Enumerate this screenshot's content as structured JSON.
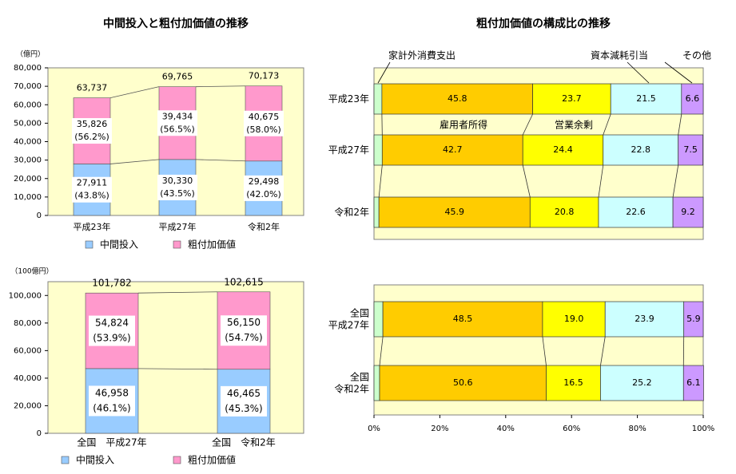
{
  "chart_data": [
    {
      "type": "stacked_bar",
      "title": "中間投入と粗付加価値の推移",
      "unit": "（億円）",
      "categories": [
        "平成23年",
        "平成27年",
        "令和2年"
      ],
      "series": [
        {
          "name": "中間投入",
          "color": "#99ccff",
          "values": [
            27911,
            30330,
            29498
          ],
          "value_labels": [
            "27,911",
            "30,330",
            "29,498"
          ],
          "shares": [
            43.8,
            43.5,
            42.0
          ],
          "share_labels": [
            "(43.8%)",
            "(43.5%)",
            "(42.0%)"
          ]
        },
        {
          "name": "粗付加価値",
          "color": "#ff99cc",
          "values": [
            35826,
            39434,
            40675
          ],
          "value_labels": [
            "35,826",
            "39,434",
            "40,675"
          ],
          "shares": [
            56.2,
            56.5,
            58.0
          ],
          "share_labels": [
            "(56.2%)",
            "(56.5%)",
            "(58.0%)"
          ]
        }
      ],
      "totals": [
        63737,
        69765,
        70173
      ],
      "total_labels": [
        "63,737",
        "69,765",
        "70,173"
      ],
      "ylim": [
        0,
        80000
      ],
      "yticks": [
        0,
        {
          "value": 10000,
          "label": "10,000"
        },
        {
          "value": 20000,
          "label": "20,000"
        },
        {
          "value": 30000,
          "label": "30,000"
        },
        {
          "value": 40000,
          "label": "40,000"
        },
        {
          "value": 50000,
          "label": "50,000"
        },
        {
          "value": 60000,
          "label": "60,000"
        },
        {
          "value": 70000,
          "label": "70,000"
        },
        {
          "value": 80000,
          "label": "80,000"
        }
      ]
    },
    {
      "type": "stacked_bar",
      "unit": "（100億円）",
      "categories": [
        "全国　平成27年",
        "全国　令和2年"
      ],
      "series": [
        {
          "name": "中間投入",
          "color": "#99ccff",
          "values": [
            46958,
            46465
          ],
          "value_labels": [
            "46,958",
            "46,465"
          ],
          "shares": [
            46.1,
            45.3
          ],
          "share_labels": [
            "(46.1%)",
            "(45.3%)"
          ]
        },
        {
          "name": "粗付加価値",
          "color": "#ff99cc",
          "values": [
            54824,
            56150
          ],
          "value_labels": [
            "54,824",
            "56,150"
          ],
          "shares": [
            53.9,
            54.7
          ],
          "share_labels": [
            "(53.9%)",
            "(54.7%)"
          ]
        }
      ],
      "totals": [
        101782,
        102615
      ],
      "total_labels": [
        "101,782",
        "102,615"
      ],
      "ylim": [
        0,
        110000
      ],
      "yticks": [
        0,
        {
          "value": 20000,
          "label": "20,000"
        },
        {
          "value": 40000,
          "label": "40,000"
        },
        {
          "value": 60000,
          "label": "60,000"
        },
        {
          "value": 80000,
          "label": "80,000"
        },
        {
          "value": 100000,
          "label": "100,000"
        }
      ]
    },
    {
      "type": "stacked_barh",
      "title": "粗付加価値の構成比の推移",
      "categories": [
        "平成23年",
        "平成27年",
        "令和2年"
      ],
      "series": [
        {
          "name": "家計外消費支出",
          "color": "#ccffcc",
          "values": [
            2.4,
            2.5,
            1.5
          ]
        },
        {
          "name": "雇用者所得",
          "color": "#ffcc00",
          "values": [
            45.8,
            42.7,
            45.9
          ]
        },
        {
          "name": "営業余剰",
          "color": "#ffff00",
          "values": [
            23.7,
            24.4,
            20.8
          ]
        },
        {
          "name": "資本減耗引当",
          "color": "#ccffff",
          "values": [
            21.5,
            22.8,
            22.6
          ]
        },
        {
          "name": "その他",
          "color": "#cc99ff",
          "values": [
            6.6,
            7.5,
            9.2
          ]
        }
      ],
      "xlim": [
        0,
        100
      ]
    },
    {
      "type": "stacked_barh",
      "categories": [
        "全国\n平成27年",
        "全国\n令和2年"
      ],
      "series": [
        {
          "name": "家計外消費支出",
          "color": "#ccffcc",
          "values": [
            2.7,
            1.7
          ]
        },
        {
          "name": "雇用者所得",
          "color": "#ffcc00",
          "values": [
            48.5,
            50.6
          ]
        },
        {
          "name": "営業余剰",
          "color": "#ffff00",
          "values": [
            19,
            16.5
          ],
          "value_labels": [
            "19.0",
            "16.5"
          ]
        },
        {
          "name": "資本減耗引当",
          "color": "#ccffff",
          "values": [
            23.9,
            25.2
          ]
        },
        {
          "name": "その他",
          "color": "#cc99ff",
          "values": [
            5.9,
            6.1
          ]
        }
      ],
      "xlim": [
        0,
        100
      ],
      "xticks": [
        {
          "value": 0,
          "label": "0%"
        },
        {
          "value": 20,
          "label": "20%"
        },
        {
          "value": 40,
          "label": "40%"
        },
        {
          "value": 60,
          "label": "60%"
        },
        {
          "value": 80,
          "label": "80%"
        },
        {
          "value": 100,
          "label": "100%"
        }
      ]
    }
  ]
}
